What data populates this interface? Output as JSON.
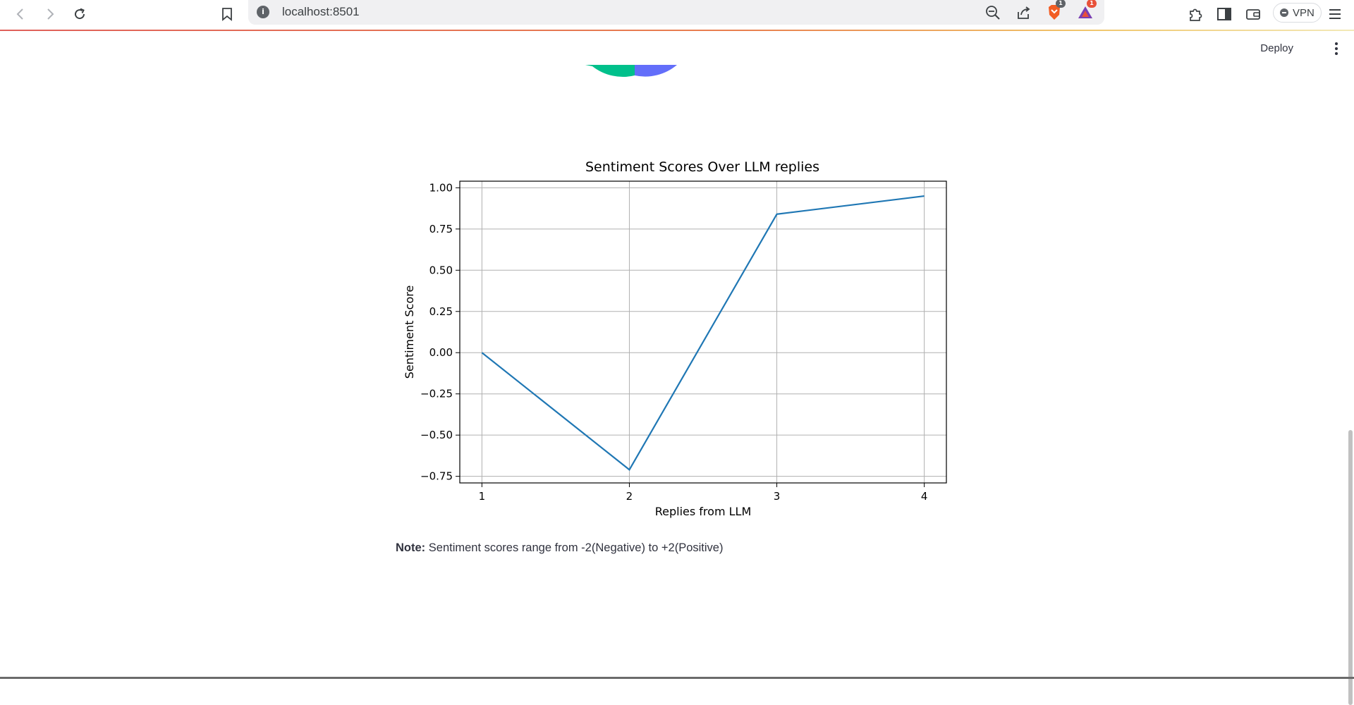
{
  "browser": {
    "url": "localhost:8501",
    "site_info_glyph": "i",
    "brave_badge": "1",
    "rewards_badge": "1",
    "vpn_label": "VPN",
    "icons": [
      "back-icon",
      "forward-icon",
      "reload-icon",
      "bookmark-icon",
      "zoom-out-icon",
      "share-icon",
      "brave-shields-icon",
      "brave-rewards-icon",
      "extensions-icon",
      "sidebar-icon",
      "wallet-icon",
      "vpn-icon",
      "menu-icon"
    ]
  },
  "app": {
    "deploy_label": "Deploy",
    "pie_colors": [
      "#00c08b",
      "#636efa"
    ],
    "note_label": "Note:",
    "note_text": " Sentiment scores range from -2(Negative) to +2(Positive)"
  },
  "chart_data": {
    "type": "line",
    "title": "Sentiment Scores Over LLM replies",
    "xlabel": "Replies from LLM",
    "ylabel": "Sentiment Score",
    "x": [
      1,
      2,
      3,
      4
    ],
    "values": [
      0.0,
      -0.71,
      0.84,
      0.95
    ],
    "xlim": [
      0.85,
      4.15
    ],
    "ylim": [
      -0.79,
      1.04
    ],
    "xticks": [
      1,
      2,
      3,
      4
    ],
    "xtick_labels": [
      "1",
      "2",
      "3",
      "4"
    ],
    "yticks": [
      1.0,
      0.75,
      0.5,
      0.25,
      0.0,
      -0.25,
      -0.5,
      -0.75
    ],
    "ytick_labels": [
      "1.00",
      "0.75",
      "0.50",
      "0.25",
      "0.00",
      "−0.25",
      "−0.50",
      "−0.75"
    ],
    "grid": true,
    "line_color": "#1f77b4"
  }
}
